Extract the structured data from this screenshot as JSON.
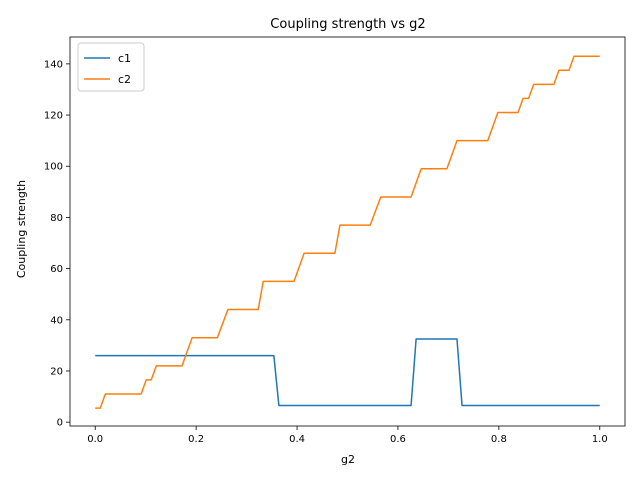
{
  "chart_data": {
    "type": "line",
    "title": "Coupling strength vs g2",
    "xlabel": "g2",
    "ylabel": "Coupling strength",
    "xlim": [
      -0.05,
      1.05
    ],
    "ylim": [
      -1.5,
      150.5
    ],
    "xticks": [
      0.0,
      0.2,
      0.4,
      0.6,
      0.8,
      1.0
    ],
    "xtick_labels": [
      "0.0",
      "0.2",
      "0.4",
      "0.6",
      "0.8",
      "1.0"
    ],
    "yticks": [
      0,
      20,
      40,
      60,
      80,
      100,
      120,
      140
    ],
    "ytick_labels": [
      "0",
      "20",
      "40",
      "60",
      "80",
      "100",
      "120",
      "140"
    ],
    "grid": false,
    "legend_position": "top-left",
    "series": [
      {
        "name": "c1",
        "color": "#1f77b4",
        "x": [
          0.0,
          0.354,
          0.364,
          0.626,
          0.636,
          0.717,
          0.727,
          1.0
        ],
        "y": [
          26.0,
          26.0,
          6.5,
          6.5,
          32.5,
          32.5,
          6.5,
          6.5
        ]
      },
      {
        "name": "c2",
        "color": "#ff7f0e",
        "x": [
          0.0,
          0.01,
          0.02,
          0.091,
          0.101,
          0.111,
          0.121,
          0.172,
          0.192,
          0.242,
          0.263,
          0.323,
          0.333,
          0.394,
          0.414,
          0.475,
          0.485,
          0.545,
          0.566,
          0.626,
          0.646,
          0.697,
          0.717,
          0.778,
          0.798,
          0.838,
          0.848,
          0.859,
          0.869,
          0.909,
          0.919,
          0.939,
          0.949,
          1.0
        ],
        "y": [
          5.5,
          5.5,
          11.0,
          11.0,
          16.5,
          16.5,
          22.0,
          22.0,
          33.0,
          33.0,
          44.0,
          44.0,
          55.0,
          55.0,
          66.0,
          66.0,
          77.0,
          77.0,
          88.0,
          88.0,
          99.0,
          99.0,
          110.0,
          110.0,
          121.0,
          121.0,
          126.5,
          126.5,
          132.0,
          132.0,
          137.5,
          137.5,
          143.0,
          143.0
        ]
      }
    ]
  }
}
